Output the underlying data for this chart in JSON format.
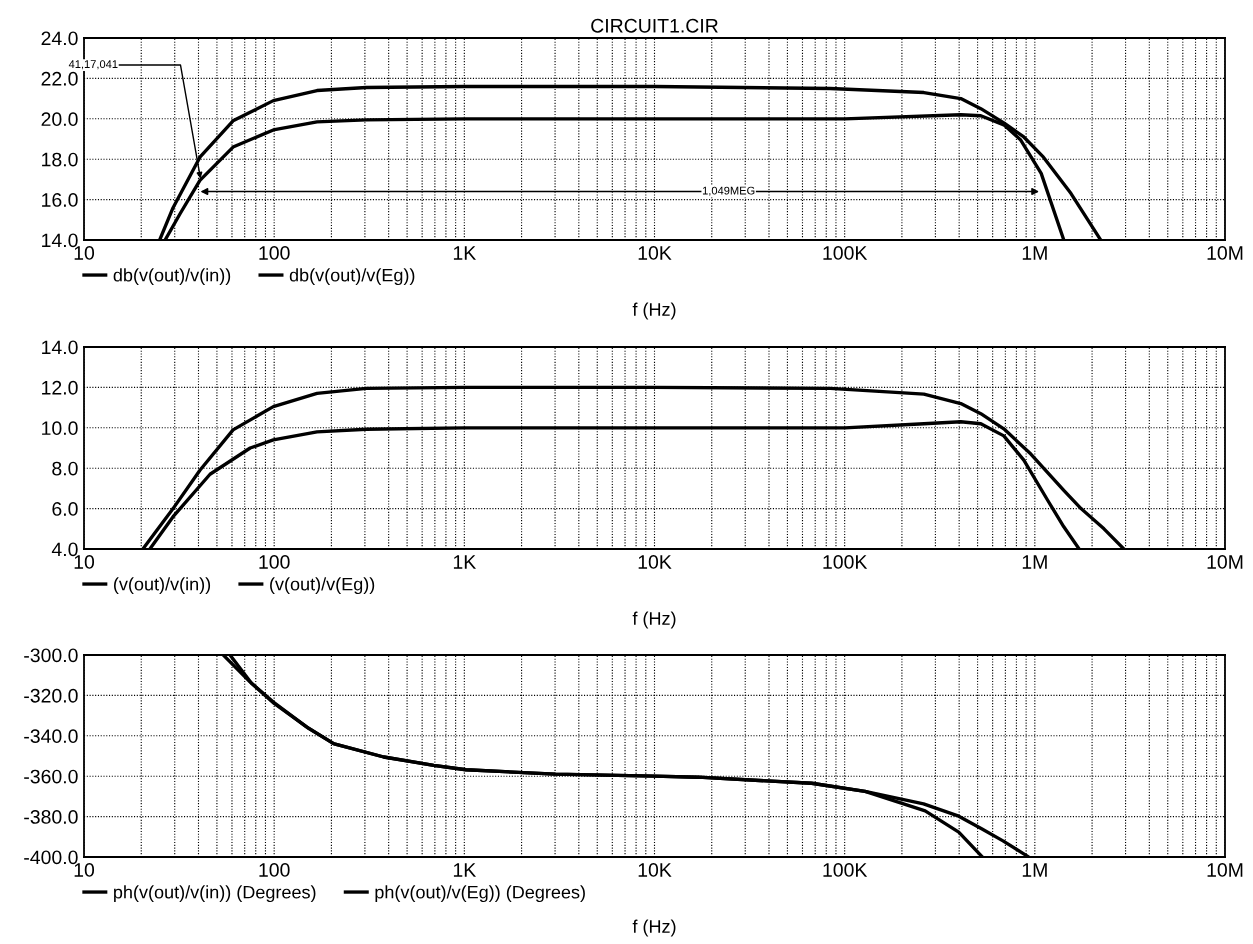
{
  "chart_data": [
    {
      "type": "line",
      "title": "CIRCUIT1.CIR",
      "xlabel": "f (Hz)",
      "log": "x",
      "xlim": [
        10,
        10000000
      ],
      "ylim": [
        14,
        24
      ],
      "xticks": [
        10,
        100,
        {
          "value": 1000,
          "label": "1K"
        },
        {
          "value": 10000,
          "label": "10K"
        },
        {
          "value": 100000,
          "label": "100K"
        },
        {
          "value": 1000000,
          "label": "1M"
        },
        {
          "value": 10000000,
          "label": "10M"
        }
      ],
      "yticks": [
        {
          "value": 14,
          "label": "14.0"
        },
        {
          "value": 16,
          "label": "16.0"
        },
        {
          "value": 18,
          "label": "18.0"
        },
        {
          "value": 20,
          "label": "20.0"
        },
        {
          "value": 22,
          "label": "22.0"
        },
        {
          "value": 24,
          "label": "24.0"
        }
      ],
      "grid": true,
      "legend": "bottom left",
      "series": [
        {
          "name": "db(v(out)/v(in))",
          "color": "#000000",
          "x": [
            25,
            29.4,
            40.7,
            60.8,
            99,
            168,
            305,
            1000,
            10000,
            84000,
            261000,
            408000,
            520000,
            687000,
            875000,
            1110000,
            1550000,
            2220000
          ],
          "values": [
            14,
            15.6,
            18.1,
            19.9,
            20.9,
            21.4,
            21.55,
            21.6,
            21.6,
            21.5,
            21.3,
            21.0,
            20.5,
            19.8,
            19.1,
            18.1,
            16.3,
            14
          ]
        },
        {
          "name": "db(v(out)/v(Eg))",
          "color": "#000000",
          "x": [
            26.7,
            32,
            40.7,
            60.8,
            99,
            168,
            305,
            1000,
            10000,
            100000,
            408000,
            520000,
            687000,
            843000,
            1080000,
            1420000
          ],
          "values": [
            14,
            15.3,
            16.95,
            18.6,
            19.45,
            19.85,
            19.95,
            20,
            20,
            20,
            20.2,
            20.15,
            19.7,
            18.95,
            17.3,
            14
          ]
        }
      ],
      "annotations": [
        {
          "text": "41,17,041",
          "x": 41,
          "y": 17.041
        },
        "1,049MEG"
      ]
    },
    {
      "type": "line",
      "xlabel": "f (Hz)",
      "log": "x",
      "xlim": [
        10,
        10000000
      ],
      "ylim": [
        4,
        14
      ],
      "xticks": [
        10,
        100,
        {
          "value": 1000,
          "label": "1K"
        },
        {
          "value": 10000,
          "label": "10K"
        },
        {
          "value": 100000,
          "label": "100K"
        },
        {
          "value": 1000000,
          "label": "1M"
        },
        {
          "value": 10000000,
          "label": "10M"
        }
      ],
      "yticks": [
        {
          "value": 4,
          "label": "4.0"
        },
        {
          "value": 6,
          "label": "6.0"
        },
        {
          "value": 8,
          "label": "8.0"
        },
        {
          "value": 10,
          "label": "10.0"
        },
        {
          "value": 12,
          "label": "12.0"
        },
        {
          "value": 14,
          "label": "14.0"
        }
      ],
      "grid": true,
      "legend": "bottom left",
      "series": [
        {
          "name": "(v(out)/v(in))",
          "color": "#000000",
          "x": [
            20.4,
            29.4,
            40.7,
            60.8,
            99,
            168,
            305,
            1000,
            10000,
            84000,
            261000,
            408000,
            520000,
            687000,
            953000,
            1420000,
            1750000,
            2310000,
            2940000
          ],
          "values": [
            4,
            6.0,
            7.9,
            9.9,
            11.05,
            11.7,
            11.95,
            12,
            12,
            11.95,
            11.67,
            11.2,
            10.7,
            9.95,
            8.7,
            6.9,
            6.0,
            5.0,
            4.0
          ]
        },
        {
          "name": "(v(out)/v(Eg))",
          "color": "#000000",
          "x": [
            22.2,
            29.4,
            46,
            74.8,
            99,
            168,
            305,
            1000,
            10000,
            100000,
            261000,
            408000,
            520000,
            687000,
            875000,
            1170000,
            1420000,
            1710000
          ],
          "values": [
            4,
            5.6,
            7.7,
            9.0,
            9.4,
            9.8,
            9.93,
            10,
            10,
            10,
            10.2,
            10.3,
            10.2,
            9.6,
            8.4,
            6.4,
            5.1,
            4.0
          ]
        }
      ]
    },
    {
      "type": "line",
      "xlabel": "f (Hz)",
      "log": "x",
      "xlim": [
        10,
        10000000
      ],
      "ylim": [
        -400,
        -300
      ],
      "xticks": [
        10,
        100,
        {
          "value": 1000,
          "label": "1K"
        },
        {
          "value": 10000,
          "label": "10K"
        },
        {
          "value": 100000,
          "label": "100K"
        },
        {
          "value": 1000000,
          "label": "1M"
        },
        {
          "value": 10000000,
          "label": "10M"
        }
      ],
      "yticks": [
        {
          "value": -400,
          "label": "-400.0"
        },
        {
          "value": -380,
          "label": "-380.0"
        },
        {
          "value": -360,
          "label": "-360.0"
        },
        {
          "value": -340,
          "label": "-340.0"
        },
        {
          "value": -320,
          "label": "-320.0"
        },
        {
          "value": -300,
          "label": "-300.0"
        }
      ],
      "grid": true,
      "legend": "bottom left",
      "series": [
        {
          "name": "ph(v(out)/v(in)) (Degrees)",
          "color": "#000000",
          "x": [
            58.6,
            76,
            100,
            150,
            207,
            378,
            690,
            1020,
            3000,
            10000,
            17000,
            67000,
            128000,
            260000,
            398000,
            525000,
            680000,
            915000
          ],
          "values": [
            -300,
            -314,
            -324,
            -336,
            -344,
            -350.5,
            -354.6,
            -356.8,
            -359,
            -360,
            -360.5,
            -363.5,
            -367.5,
            -373.7,
            -379.8,
            -386,
            -392,
            -399.6
          ]
        },
        {
          "name": "ph(v(out)/v(Eg)) (Degrees)",
          "color": "#000000",
          "x": [
            54,
            74.8,
            99,
            148,
            205,
            376,
            690,
            1020,
            3000,
            10000,
            17000,
            67000,
            128000,
            265000,
            398000,
            525000
          ],
          "values": [
            -300,
            -313.4,
            -323.3,
            -335.6,
            -343.9,
            -350.5,
            -354.6,
            -356.8,
            -359,
            -360,
            -360.5,
            -363.5,
            -367.5,
            -377.2,
            -387.7,
            -399.6
          ]
        }
      ]
    }
  ]
}
